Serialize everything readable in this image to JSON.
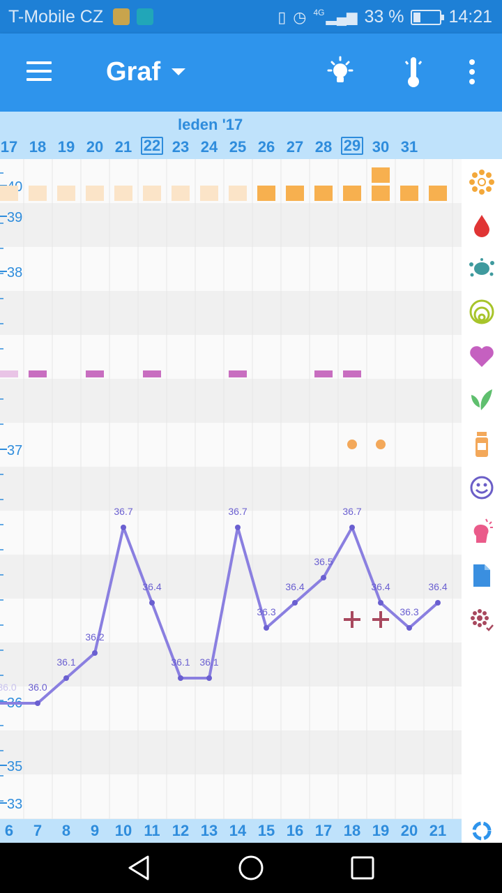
{
  "status": {
    "carrier": "T-Mobile CZ",
    "network": "4G",
    "battery": "33 %",
    "battery_level": 0.33,
    "time": "14:21"
  },
  "appbar": {
    "title": "Graf",
    "icons": [
      "menu-icon",
      "dropdown-caret-icon",
      "lightbulb-icon",
      "thermometer-icon",
      "more-vert-icon"
    ]
  },
  "dates": {
    "month": "leden '17",
    "days": [
      "17",
      "18",
      "19",
      "20",
      "21",
      "22",
      "23",
      "24",
      "25",
      "26",
      "27",
      "28",
      "29",
      "30",
      "31"
    ],
    "boxed_days": [
      "22",
      "29"
    ]
  },
  "cycle_days": [
    "6",
    "7",
    "8",
    "9",
    "10",
    "11",
    "12",
    "13",
    "14",
    "15",
    "16",
    "17",
    "18",
    "19",
    "20",
    "21"
  ],
  "y_axis": {
    "ticks": [
      {
        "label": "40",
        "value": 40.0
      },
      {
        "label": "39",
        "value": 39.0
      },
      {
        "label": "38",
        "value": 38.0
      },
      {
        "label": "37",
        "value": 37.0
      },
      {
        "label": "36",
        "value": 36.0
      },
      {
        "label": "35",
        "value": 35.0
      },
      {
        "label": "33",
        "value": 33.0
      }
    ]
  },
  "colors": {
    "accent": "#2e94ec",
    "line": "#8a7fe0",
    "period_full": "#f7b04f",
    "period_light": "#fbe4c8",
    "marker_pink": "#c86ec0",
    "dot_orange": "#f3a85a",
    "plus_red": "#a8485e"
  },
  "chart_data": {
    "type": "line",
    "x": [
      "6",
      "7",
      "8",
      "9",
      "10",
      "11",
      "12",
      "13",
      "14",
      "15",
      "16",
      "17",
      "18",
      "19",
      "20",
      "21"
    ],
    "series": [
      {
        "values": [
          36.0,
          36.0,
          36.1,
          36.2,
          36.7,
          36.4,
          36.1,
          36.1,
          36.7,
          36.3,
          36.4,
          36.5,
          36.7,
          36.4,
          36.3,
          36.4
        ],
        "labels": [
          "36.0",
          "36.0",
          "36.1",
          "36.2",
          "36.7",
          "36.4",
          "36.1",
          "36.1",
          "36.7",
          "36.3",
          "36.4",
          "36.5",
          "36.7",
          "36.4",
          "36.3",
          "36.4"
        ]
      }
    ],
    "period_markers": [
      {
        "day": "6",
        "level": "light"
      },
      {
        "day": "7",
        "level": "light"
      },
      {
        "day": "8",
        "level": "light"
      },
      {
        "day": "9",
        "level": "light"
      },
      {
        "day": "10",
        "level": "light"
      },
      {
        "day": "11",
        "level": "light"
      },
      {
        "day": "12",
        "level": "light"
      },
      {
        "day": "13",
        "level": "light"
      },
      {
        "day": "14",
        "level": "light"
      },
      {
        "day": "15",
        "level": "full"
      },
      {
        "day": "16",
        "level": "full"
      },
      {
        "day": "17",
        "level": "full"
      },
      {
        "day": "18",
        "level": "full"
      },
      {
        "day": "19",
        "level": "double"
      },
      {
        "day": "20",
        "level": "full"
      },
      {
        "day": "21",
        "level": "full"
      }
    ],
    "heart_markers": [
      "6",
      "7",
      "9",
      "11",
      "14",
      "17",
      "18"
    ],
    "pill_markers": [
      "18",
      "19"
    ],
    "plus_markers": [
      "18",
      "19"
    ]
  },
  "sidebar_icons": [
    "sun-flower-icon",
    "drop-icon",
    "splash-icon",
    "cervix-icon",
    "heart-icon",
    "leaf-icon",
    "medicine-bottle-icon",
    "smiley-icon",
    "head-pain-icon",
    "note-icon",
    "flower-check-icon"
  ],
  "footer_icon": "sync-icon"
}
